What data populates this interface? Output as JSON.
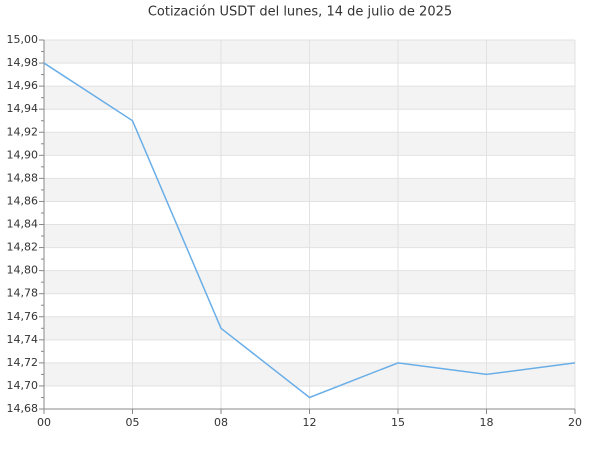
{
  "chart_data": {
    "type": "line",
    "title": "Cotización USDT del lunes, 14 de julio de 2025",
    "categories": [
      "00",
      "05",
      "08",
      "12",
      "15",
      "18",
      "20"
    ],
    "series": [
      {
        "name": "USDT",
        "color": "#6aaee8",
        "values": [
          14.98,
          14.93,
          14.75,
          14.69,
          14.72,
          14.71,
          14.72
        ]
      }
    ],
    "ylim": [
      14.68,
      15.0
    ],
    "yticks": [
      {
        "value": 14.68,
        "label": "14,68"
      },
      {
        "value": 14.7,
        "label": "14,70"
      },
      {
        "value": 14.72,
        "label": "14,72"
      },
      {
        "value": 14.74,
        "label": "14,74"
      },
      {
        "value": 14.76,
        "label": "14,76"
      },
      {
        "value": 14.78,
        "label": "14,78"
      },
      {
        "value": 14.8,
        "label": "14,80"
      },
      {
        "value": 14.82,
        "label": "14,82"
      },
      {
        "value": 14.84,
        "label": "14,84"
      },
      {
        "value": 14.86,
        "label": "14,86"
      },
      {
        "value": 14.88,
        "label": "14,88"
      },
      {
        "value": 14.9,
        "label": "14,90"
      },
      {
        "value": 14.92,
        "label": "14,92"
      },
      {
        "value": 14.94,
        "label": "14,94"
      },
      {
        "value": 14.96,
        "label": "14,96"
      },
      {
        "value": 14.98,
        "label": "14,98"
      },
      {
        "value": 15.0,
        "label": "15,00"
      }
    ],
    "grid": true
  }
}
